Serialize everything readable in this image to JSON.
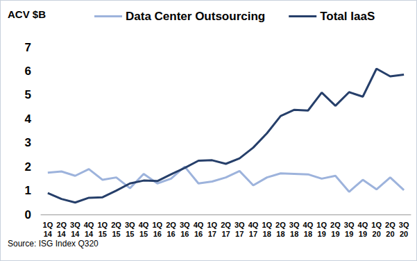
{
  "chart_data": {
    "type": "line",
    "y_label": "ACV $B",
    "annotation": "Source: ISG Index Q320",
    "categories": [
      "1Q\n14",
      "2Q\n14",
      "3Q\n14",
      "4Q\n14",
      "1Q\n15",
      "2Q\n15",
      "3Q\n15",
      "4Q\n15",
      "1Q\n16",
      "2Q\n16",
      "3Q\n16",
      "4Q\n16",
      "1Q\n17",
      "2Q\n17",
      "3Q\n17",
      "4Q\n17",
      "1Q\n18",
      "2Q\n18",
      "3Q\n18",
      "4Q\n18",
      "1Q\n19",
      "2Q\n19",
      "3Q\n19",
      "4Q\n19",
      "1Q\n20",
      "2Q\n20",
      "3Q\n20"
    ],
    "series": [
      {
        "name": "Data Center Outsourcing",
        "color": "#9db3dc",
        "values": [
          1.75,
          1.8,
          1.62,
          1.9,
          1.45,
          1.55,
          1.1,
          1.7,
          1.3,
          1.5,
          2.0,
          1.3,
          1.38,
          1.55,
          1.82,
          1.22,
          1.55,
          1.72,
          1.7,
          1.68,
          1.5,
          1.62,
          0.95,
          1.45,
          1.05,
          1.55,
          1.02
        ]
      },
      {
        "name": "Total IaaS",
        "color": "#263f6a",
        "values": [
          0.9,
          0.65,
          0.5,
          0.7,
          0.72,
          1.0,
          1.3,
          1.42,
          1.4,
          1.68,
          1.95,
          2.25,
          2.27,
          2.12,
          2.35,
          2.8,
          3.4,
          4.12,
          4.38,
          4.35,
          5.1,
          4.55,
          5.12,
          4.93,
          6.1,
          5.78,
          5.85
        ]
      }
    ],
    "ylim": [
      0,
      7
    ],
    "yticks": [
      0,
      1,
      2,
      3,
      4,
      5,
      6,
      7
    ],
    "grid": false,
    "legend": "top"
  }
}
